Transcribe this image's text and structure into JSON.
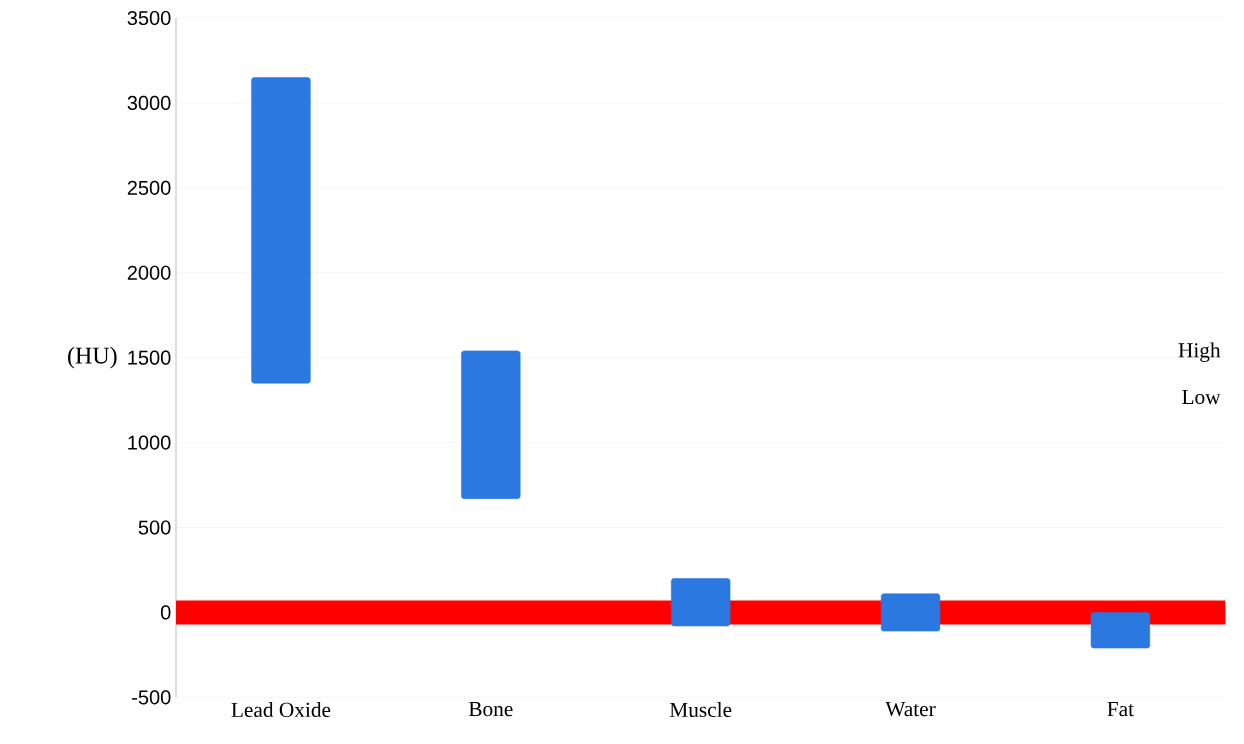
{
  "chart_data": {
    "type": "bar",
    "ylabel": "(HU)",
    "categories": [
      "Lead Oxide",
      "Bone",
      "Muscle",
      "Water",
      "Fat"
    ],
    "base": [
      1350,
      670,
      -80,
      -110,
      -210
    ],
    "values": [
      1800,
      870,
      280,
      220,
      210
    ],
    "color": "#2a78e0",
    "ylim": [
      -500,
      3500
    ],
    "yticks": [
      -500,
      0,
      500,
      1000,
      1500,
      2000,
      2500,
      3000,
      3500
    ],
    "grid": "y",
    "ref_lines": [
      {
        "axis": "y",
        "value": 0,
        "color": "#ff0000"
      }
    ],
    "annotations": [
      "High",
      "Low"
    ]
  }
}
